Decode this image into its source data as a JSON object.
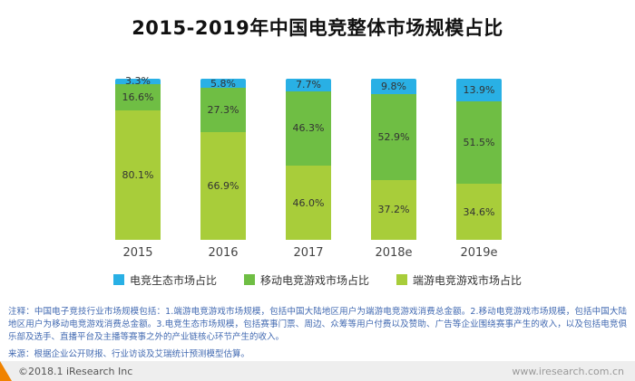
{
  "title": "2015-2019年中国电竞整体市场规模占比",
  "chart_data": {
    "type": "bar",
    "stacked": true,
    "title": "2015-2019年中国电竞整体市场规模占比",
    "categories": [
      "2015",
      "2016",
      "2017",
      "2018e",
      "2019e"
    ],
    "series": [
      {
        "name": "电竞生态市场占比",
        "color": "#29b0e5",
        "values": [
          3.3,
          5.8,
          7.7,
          9.8,
          13.9
        ]
      },
      {
        "name": "移动电竞游戏市场占比",
        "color": "#6fbe44",
        "values": [
          16.6,
          27.3,
          46.3,
          52.9,
          51.5
        ]
      },
      {
        "name": "端游电竞游戏市场占比",
        "color": "#a8cd3a",
        "values": [
          80.1,
          66.9,
          46.0,
          37.2,
          34.6
        ]
      }
    ],
    "unit": "%",
    "ylim": [
      0,
      100
    ],
    "grid": false,
    "legend_position": "bottom",
    "value_labels": "inside"
  },
  "notes": {
    "annotation": "注释：中国电子竞技行业市场规模包括：1.端游电竞游戏市场规模，包括中国大陆地区用户为端游电竞游戏消费总金额。2.移动电竞游戏市场规模，包括中国大陆地区用户为移动电竞游戏消费总金额。3.电竞生态市场规模，包括赛事门票、周边、众筹等用户付费以及赞助、广告等企业围绕赛事产生的收入，以及包括电竞俱乐部及选手、直播平台及主播等赛事之外的产业链核心环节产生的收入。",
    "source": "来源：根据企业公开财报、行业访谈及艾瑞统计预测模型估算。"
  },
  "footer": {
    "left": "©2018.1 iResearch Inc",
    "right": "www.iresearch.com.cn"
  },
  "colors": {
    "accent_orange": "#f08300",
    "note_blue": "#4169b1",
    "footer_background": "#eeeeee"
  }
}
